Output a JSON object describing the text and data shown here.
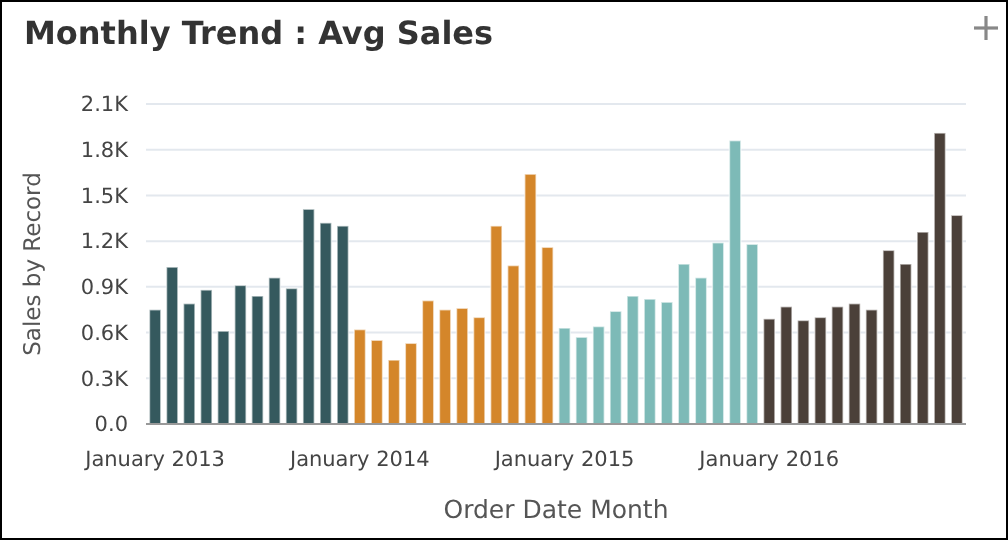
{
  "chart_data": {
    "type": "bar",
    "title": "Monthly Trend : Avg Sales",
    "xlabel": "Order Date Month",
    "ylabel": "Sales by Record",
    "categories": [
      "January 2013",
      null,
      null,
      null,
      null,
      null,
      null,
      null,
      null,
      null,
      null,
      null,
      "January 2014",
      null,
      null,
      null,
      null,
      null,
      null,
      null,
      null,
      null,
      null,
      null,
      "January 2015",
      null,
      null,
      null,
      null,
      null,
      null,
      null,
      null,
      null,
      null,
      null,
      "January 2016",
      null,
      null,
      null,
      null,
      null,
      null,
      null,
      null,
      null,
      null,
      null
    ],
    "values": [
      750,
      1030,
      790,
      880,
      610,
      910,
      840,
      960,
      890,
      1410,
      1320,
      1300,
      620,
      550,
      420,
      530,
      810,
      750,
      760,
      700,
      1300,
      1040,
      1640,
      1160,
      630,
      570,
      640,
      740,
      840,
      820,
      800,
      1050,
      960,
      1190,
      1860,
      1180,
      690,
      770,
      680,
      700,
      770,
      790,
      750,
      1140,
      1050,
      1260,
      1910,
      1370
    ],
    "colors": [
      "#35595e",
      "#35595e",
      "#35595e",
      "#35595e",
      "#35595e",
      "#35595e",
      "#35595e",
      "#35595e",
      "#35595e",
      "#35595e",
      "#35595e",
      "#35595e",
      "#d4862a",
      "#d4862a",
      "#d4862a",
      "#d4862a",
      "#d4862a",
      "#d4862a",
      "#d4862a",
      "#d4862a",
      "#d4862a",
      "#d4862a",
      "#d4862a",
      "#d4862a",
      "#7dbab7",
      "#7dbab7",
      "#7dbab7",
      "#7dbab7",
      "#7dbab7",
      "#7dbab7",
      "#7dbab7",
      "#7dbab7",
      "#7dbab7",
      "#7dbab7",
      "#7dbab7",
      "#7dbab7",
      "#4b4039",
      "#4b4039",
      "#4b4039",
      "#4b4039",
      "#4b4039",
      "#4b4039",
      "#4b4039",
      "#4b4039",
      "#4b4039",
      "#4b4039",
      "#4b4039",
      "#4b4039"
    ],
    "ylim": [
      0,
      2100
    ],
    "yticks": [
      {
        "value": 0,
        "label": "0.0"
      },
      {
        "value": 300,
        "label": "0.3K"
      },
      {
        "value": 600,
        "label": "0.6K"
      },
      {
        "value": 900,
        "label": "0.9K"
      },
      {
        "value": 1200,
        "label": "1.2K"
      },
      {
        "value": 1500,
        "label": "1.5K"
      },
      {
        "value": 1800,
        "label": "1.8K"
      },
      {
        "value": 2100,
        "label": "2.1K"
      }
    ],
    "grid": "y"
  }
}
